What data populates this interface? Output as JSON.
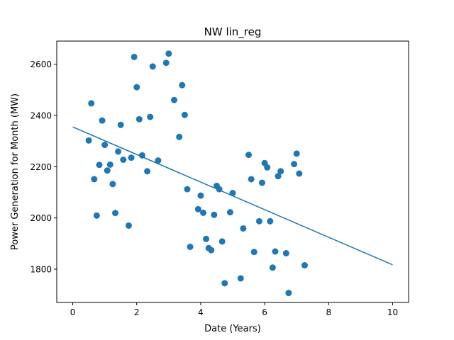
{
  "chart_data": {
    "type": "scatter",
    "title": "NW lin_reg",
    "xlabel": "Date (Years)",
    "ylabel": "Power Generation for Month (MW)",
    "xlim": [
      -0.5,
      10.5
    ],
    "ylim": [
      1670,
      2690
    ],
    "xticks": [
      0,
      2,
      4,
      6,
      8,
      10
    ],
    "yticks": [
      1800,
      2000,
      2200,
      2400,
      2600
    ],
    "xtick_labels": [
      "0",
      "2",
      "4",
      "6",
      "8",
      "10"
    ],
    "ytick_labels": [
      "1800",
      "2000",
      "2200",
      "2400",
      "2600"
    ],
    "grid": false,
    "colors": {
      "points": "#1f77b4",
      "line": "#1f77b4"
    },
    "series": [
      {
        "kind": "scatter",
        "points": [
          {
            "x": 0.5,
            "y": 2302
          },
          {
            "x": 0.58,
            "y": 2447
          },
          {
            "x": 0.67,
            "y": 2151
          },
          {
            "x": 0.75,
            "y": 2009
          },
          {
            "x": 0.83,
            "y": 2207
          },
          {
            "x": 0.92,
            "y": 2380
          },
          {
            "x": 1.0,
            "y": 2285
          },
          {
            "x": 1.08,
            "y": 2185
          },
          {
            "x": 1.17,
            "y": 2208
          },
          {
            "x": 1.25,
            "y": 2132
          },
          {
            "x": 1.33,
            "y": 2019
          },
          {
            "x": 1.42,
            "y": 2259
          },
          {
            "x": 1.5,
            "y": 2363
          },
          {
            "x": 1.58,
            "y": 2227
          },
          {
            "x": 1.75,
            "y": 1970
          },
          {
            "x": 1.83,
            "y": 2235
          },
          {
            "x": 1.92,
            "y": 2628
          },
          {
            "x": 2.0,
            "y": 2510
          },
          {
            "x": 2.08,
            "y": 2385
          },
          {
            "x": 2.17,
            "y": 2244
          },
          {
            "x": 2.33,
            "y": 2182
          },
          {
            "x": 2.42,
            "y": 2394
          },
          {
            "x": 2.5,
            "y": 2591
          },
          {
            "x": 2.67,
            "y": 2224
          },
          {
            "x": 2.92,
            "y": 2605
          },
          {
            "x": 3.0,
            "y": 2641
          },
          {
            "x": 3.17,
            "y": 2460
          },
          {
            "x": 3.33,
            "y": 2316
          },
          {
            "x": 3.42,
            "y": 2518
          },
          {
            "x": 3.5,
            "y": 2402
          },
          {
            "x": 3.58,
            "y": 2112
          },
          {
            "x": 3.67,
            "y": 1887
          },
          {
            "x": 3.92,
            "y": 2034
          },
          {
            "x": 4.0,
            "y": 2087
          },
          {
            "x": 4.08,
            "y": 2020
          },
          {
            "x": 4.17,
            "y": 1918
          },
          {
            "x": 4.25,
            "y": 1882
          },
          {
            "x": 4.33,
            "y": 1874
          },
          {
            "x": 4.42,
            "y": 2012
          },
          {
            "x": 4.5,
            "y": 2125
          },
          {
            "x": 4.58,
            "y": 2112
          },
          {
            "x": 4.67,
            "y": 1908
          },
          {
            "x": 4.75,
            "y": 1745
          },
          {
            "x": 4.92,
            "y": 2022
          },
          {
            "x": 5.0,
            "y": 2097
          },
          {
            "x": 5.25,
            "y": 1764
          },
          {
            "x": 5.33,
            "y": 1959
          },
          {
            "x": 5.5,
            "y": 2246
          },
          {
            "x": 5.58,
            "y": 2151
          },
          {
            "x": 5.67,
            "y": 1867
          },
          {
            "x": 5.83,
            "y": 1987
          },
          {
            "x": 5.92,
            "y": 2137
          },
          {
            "x": 6.0,
            "y": 2214
          },
          {
            "x": 6.08,
            "y": 2197
          },
          {
            "x": 6.17,
            "y": 1987
          },
          {
            "x": 6.25,
            "y": 1806
          },
          {
            "x": 6.33,
            "y": 1869
          },
          {
            "x": 6.42,
            "y": 2163
          },
          {
            "x": 6.5,
            "y": 2182
          },
          {
            "x": 6.67,
            "y": 1862
          },
          {
            "x": 6.75,
            "y": 1707
          },
          {
            "x": 6.92,
            "y": 2210
          },
          {
            "x": 7.0,
            "y": 2251
          },
          {
            "x": 7.08,
            "y": 2173
          },
          {
            "x": 7.25,
            "y": 1815
          }
        ]
      },
      {
        "kind": "line",
        "points": [
          {
            "x": 0,
            "y": 2355
          },
          {
            "x": 10,
            "y": 1817
          }
        ]
      }
    ]
  }
}
